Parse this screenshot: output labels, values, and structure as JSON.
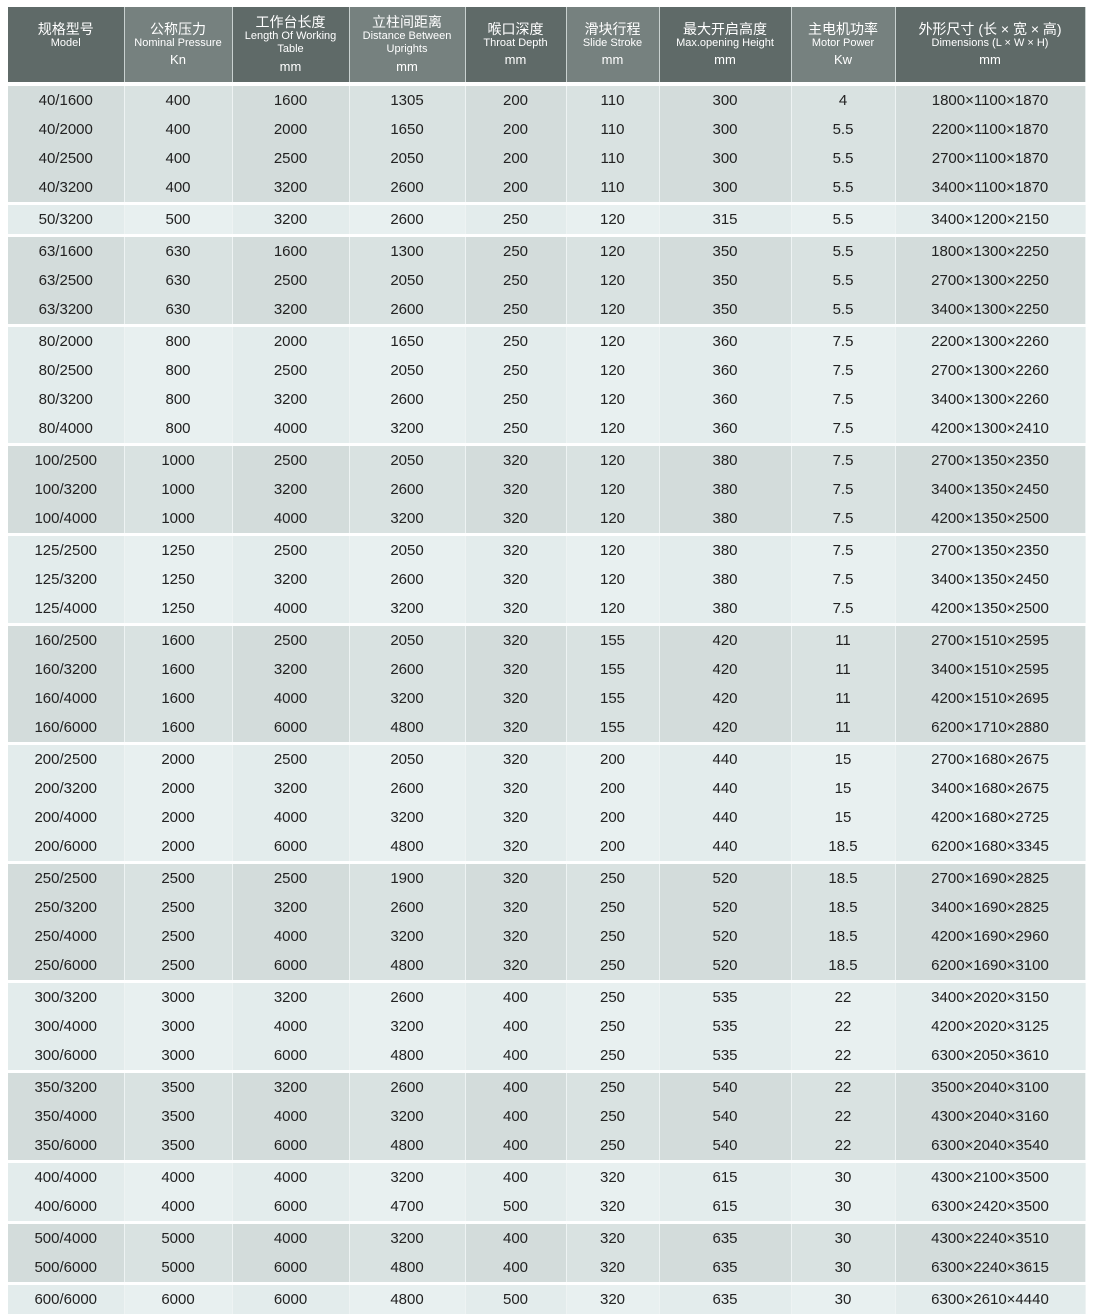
{
  "header": [
    {
      "cn": "规格型号",
      "en": "Model",
      "unit": ""
    },
    {
      "cn": "公称压力",
      "en": "Nominal Pressure",
      "unit": "Kn"
    },
    {
      "cn": "工作台长度",
      "en": "Length Of Working Table",
      "unit": "mm"
    },
    {
      "cn": "立柱间距离",
      "en": "Distance Between Uprights",
      "unit": "mm"
    },
    {
      "cn": "喉口深度",
      "en": "Throat Depth",
      "unit": "mm"
    },
    {
      "cn": "滑块行程",
      "en": "Slide Stroke",
      "unit": "mm"
    },
    {
      "cn": "最大开启高度",
      "en": "Max.opening Height",
      "unit": "mm"
    },
    {
      "cn": "主电机功率",
      "en": "Motor Power",
      "unit": "Kw"
    },
    {
      "cn": "外形尺寸 (长 × 宽 × 高)",
      "en": "Dimensions (L × W × H)",
      "unit": "mm"
    }
  ],
  "groups": [
    [
      [
        "40/1600",
        "400",
        "1600",
        "1305",
        "200",
        "110",
        "300",
        "4",
        "1800×1100×1870"
      ],
      [
        "40/2000",
        "400",
        "2000",
        "1650",
        "200",
        "110",
        "300",
        "5.5",
        "2200×1100×1870"
      ],
      [
        "40/2500",
        "400",
        "2500",
        "2050",
        "200",
        "110",
        "300",
        "5.5",
        "2700×1100×1870"
      ],
      [
        "40/3200",
        "400",
        "3200",
        "2600",
        "200",
        "110",
        "300",
        "5.5",
        "3400×1100×1870"
      ]
    ],
    [
      [
        "50/3200",
        "500",
        "3200",
        "2600",
        "250",
        "120",
        "315",
        "5.5",
        "3400×1200×2150"
      ]
    ],
    [
      [
        "63/1600",
        "630",
        "1600",
        "1300",
        "250",
        "120",
        "350",
        "5.5",
        "1800×1300×2250"
      ],
      [
        "63/2500",
        "630",
        "2500",
        "2050",
        "250",
        "120",
        "350",
        "5.5",
        "2700×1300×2250"
      ],
      [
        "63/3200",
        "630",
        "3200",
        "2600",
        "250",
        "120",
        "350",
        "5.5",
        "3400×1300×2250"
      ]
    ],
    [
      [
        "80/2000",
        "800",
        "2000",
        "1650",
        "250",
        "120",
        "360",
        "7.5",
        "2200×1300×2260"
      ],
      [
        "80/2500",
        "800",
        "2500",
        "2050",
        "250",
        "120",
        "360",
        "7.5",
        "2700×1300×2260"
      ],
      [
        "80/3200",
        "800",
        "3200",
        "2600",
        "250",
        "120",
        "360",
        "7.5",
        "3400×1300×2260"
      ],
      [
        "80/4000",
        "800",
        "4000",
        "3200",
        "250",
        "120",
        "360",
        "7.5",
        "4200×1300×2410"
      ]
    ],
    [
      [
        "100/2500",
        "1000",
        "2500",
        "2050",
        "320",
        "120",
        "380",
        "7.5",
        "2700×1350×2350"
      ],
      [
        "100/3200",
        "1000",
        "3200",
        "2600",
        "320",
        "120",
        "380",
        "7.5",
        "3400×1350×2450"
      ],
      [
        "100/4000",
        "1000",
        "4000",
        "3200",
        "320",
        "120",
        "380",
        "7.5",
        "4200×1350×2500"
      ]
    ],
    [
      [
        "125/2500",
        "1250",
        "2500",
        "2050",
        "320",
        "120",
        "380",
        "7.5",
        "2700×1350×2350"
      ],
      [
        "125/3200",
        "1250",
        "3200",
        "2600",
        "320",
        "120",
        "380",
        "7.5",
        "3400×1350×2450"
      ],
      [
        "125/4000",
        "1250",
        "4000",
        "3200",
        "320",
        "120",
        "380",
        "7.5",
        "4200×1350×2500"
      ]
    ],
    [
      [
        "160/2500",
        "1600",
        "2500",
        "2050",
        "320",
        "155",
        "420",
        "11",
        "2700×1510×2595"
      ],
      [
        "160/3200",
        "1600",
        "3200",
        "2600",
        "320",
        "155",
        "420",
        "11",
        "3400×1510×2595"
      ],
      [
        "160/4000",
        "1600",
        "4000",
        "3200",
        "320",
        "155",
        "420",
        "11",
        "4200×1510×2695"
      ],
      [
        "160/6000",
        "1600",
        "6000",
        "4800",
        "320",
        "155",
        "420",
        "11",
        "6200×1710×2880"
      ]
    ],
    [
      [
        "200/2500",
        "2000",
        "2500",
        "2050",
        "320",
        "200",
        "440",
        "15",
        "2700×1680×2675"
      ],
      [
        "200/3200",
        "2000",
        "3200",
        "2600",
        "320",
        "200",
        "440",
        "15",
        "3400×1680×2675"
      ],
      [
        "200/4000",
        "2000",
        "4000",
        "3200",
        "320",
        "200",
        "440",
        "15",
        "4200×1680×2725"
      ],
      [
        "200/6000",
        "2000",
        "6000",
        "4800",
        "320",
        "200",
        "440",
        "18.5",
        "6200×1680×3345"
      ]
    ],
    [
      [
        "250/2500",
        "2500",
        "2500",
        "1900",
        "320",
        "250",
        "520",
        "18.5",
        "2700×1690×2825"
      ],
      [
        "250/3200",
        "2500",
        "3200",
        "2600",
        "320",
        "250",
        "520",
        "18.5",
        "3400×1690×2825"
      ],
      [
        "250/4000",
        "2500",
        "4000",
        "3200",
        "320",
        "250",
        "520",
        "18.5",
        "4200×1690×2960"
      ],
      [
        "250/6000",
        "2500",
        "6000",
        "4800",
        "320",
        "250",
        "520",
        "18.5",
        "6200×1690×3100"
      ]
    ],
    [
      [
        "300/3200",
        "3000",
        "3200",
        "2600",
        "400",
        "250",
        "535",
        "22",
        "3400×2020×3150"
      ],
      [
        "300/4000",
        "3000",
        "4000",
        "3200",
        "400",
        "250",
        "535",
        "22",
        "4200×2020×3125"
      ],
      [
        "300/6000",
        "3000",
        "6000",
        "4800",
        "400",
        "250",
        "535",
        "22",
        "6300×2050×3610"
      ]
    ],
    [
      [
        "350/3200",
        "3500",
        "3200",
        "2600",
        "400",
        "250",
        "540",
        "22",
        "3500×2040×3100"
      ],
      [
        "350/4000",
        "3500",
        "4000",
        "3200",
        "400",
        "250",
        "540",
        "22",
        "4300×2040×3160"
      ],
      [
        "350/6000",
        "3500",
        "6000",
        "4800",
        "400",
        "250",
        "540",
        "22",
        "6300×2040×3540"
      ]
    ],
    [
      [
        "400/4000",
        "4000",
        "4000",
        "3200",
        "400",
        "320",
        "615",
        "30",
        "4300×2100×3500"
      ],
      [
        "400/6000",
        "4000",
        "6000",
        "4700",
        "500",
        "320",
        "615",
        "30",
        "6300×2420×3500"
      ]
    ],
    [
      [
        "500/4000",
        "5000",
        "4000",
        "3200",
        "400",
        "320",
        "635",
        "30",
        "4300×2240×3510"
      ],
      [
        "500/6000",
        "5000",
        "6000",
        "4800",
        "400",
        "320",
        "635",
        "30",
        "6300×2240×3615"
      ]
    ],
    [
      [
        "600/6000",
        "6000",
        "6000",
        "4800",
        "500",
        "320",
        "635",
        "30",
        "6300×2610×4440"
      ]
    ]
  ]
}
